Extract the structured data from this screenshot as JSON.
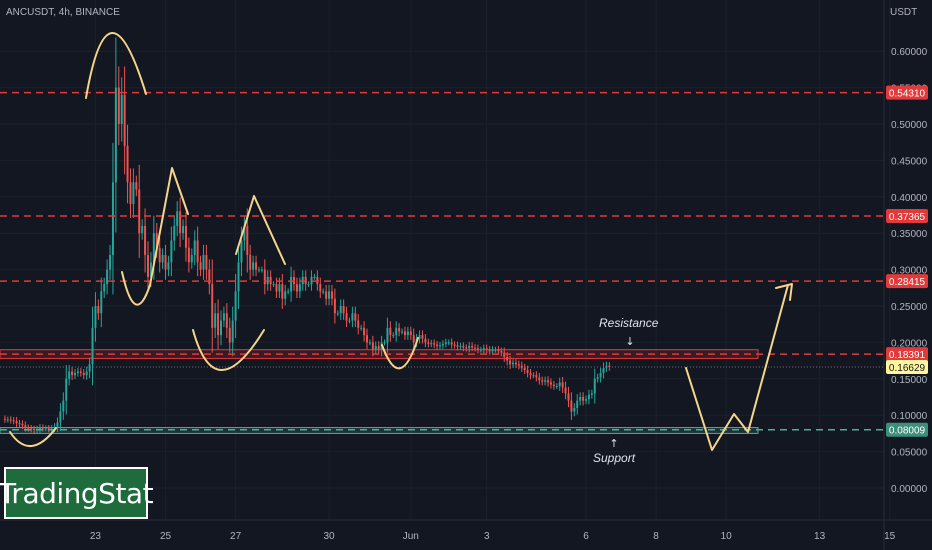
{
  "header": {
    "symbol": "ANCUSDT, 4h, BINANCE"
  },
  "logo": {
    "text": "TradingStat"
  },
  "annotations": {
    "resistance": "Resistance",
    "support": "Support"
  },
  "colors": {
    "background": "#131722",
    "bull": "#26a69a",
    "bear": "#ef5350",
    "sketch": "#f5d58a",
    "resistance_line": "#e23a3a",
    "support_line": "#4caf9a",
    "current_price": "#fff59d"
  },
  "chart_data": {
    "type": "candlestick",
    "quote_currency": "USDT",
    "y_ticks": [
      "0.60000",
      "0.55000",
      "0.50000",
      "0.45000",
      "0.40000",
      "0.35000",
      "0.30000",
      "0.25000",
      "0.20000",
      "0.15000",
      "0.10000",
      "0.05000",
      "0.00000"
    ],
    "y_tick_values": [
      0.6,
      0.55,
      0.5,
      0.45,
      0.4,
      0.35,
      0.3,
      0.25,
      0.2,
      0.15,
      0.1,
      0.05,
      0.0
    ],
    "ylim": [
      -0.05,
      0.66
    ],
    "x_ticks": [
      "23",
      "25",
      "27",
      "30",
      "Jun",
      "3",
      "6",
      "8",
      "10",
      "13",
      "15"
    ],
    "x_tick_index": [
      32,
      56,
      80,
      112,
      140,
      166,
      200,
      224,
      248,
      280,
      304
    ],
    "levels": [
      {
        "value": 0.5431,
        "label": "0.54310",
        "kind": "resistance"
      },
      {
        "value": 0.37365,
        "label": "0.37365",
        "kind": "resistance"
      },
      {
        "value": 0.28415,
        "label": "0.28415",
        "kind": "resistance"
      },
      {
        "value": 0.18391,
        "label": "0.18391",
        "kind": "resistance"
      },
      {
        "value": 0.08009,
        "label": "0.08009",
        "kind": "support"
      }
    ],
    "current_price": {
      "value": 0.16629,
      "label": "0.16629"
    },
    "resistance_zone": [
      0.178,
      0.19
    ],
    "support_zone": [
      0.075,
      0.083
    ],
    "closes": [
      0.095,
      0.094,
      0.094,
      0.093,
      0.092,
      0.089,
      0.088,
      0.086,
      0.083,
      0.082,
      0.081,
      0.08,
      0.081,
      0.083,
      0.082,
      0.082,
      0.081,
      0.082,
      0.084,
      0.09,
      0.105,
      0.12,
      0.15,
      0.16,
      0.155,
      0.158,
      0.16,
      0.158,
      0.155,
      0.16,
      0.17,
      0.22,
      0.25,
      0.24,
      0.27,
      0.28,
      0.3,
      0.32,
      0.42,
      0.55,
      0.5,
      0.54,
      0.47,
      0.42,
      0.39,
      0.42,
      0.41,
      0.35,
      0.36,
      0.32,
      0.29,
      0.31,
      0.35,
      0.33,
      0.31,
      0.32,
      0.3,
      0.31,
      0.34,
      0.36,
      0.38,
      0.35,
      0.36,
      0.33,
      0.31,
      0.32,
      0.34,
      0.31,
      0.3,
      0.32,
      0.3,
      0.28,
      0.22,
      0.24,
      0.21,
      0.23,
      0.24,
      0.22,
      0.2,
      0.23,
      0.27,
      0.31,
      0.34,
      0.36,
      0.32,
      0.3,
      0.31,
      0.3,
      0.3,
      0.3,
      0.28,
      0.29,
      0.28,
      0.28,
      0.27,
      0.28,
      0.26,
      0.27,
      0.27,
      0.29,
      0.28,
      0.27,
      0.28,
      0.29,
      0.28,
      0.28,
      0.29,
      0.29,
      0.28,
      0.27,
      0.27,
      0.26,
      0.27,
      0.26,
      0.24,
      0.24,
      0.25,
      0.24,
      0.23,
      0.23,
      0.24,
      0.23,
      0.22,
      0.22,
      0.21,
      0.2,
      0.2,
      0.19,
      0.195,
      0.19,
      0.2,
      0.2,
      0.22,
      0.21,
      0.21,
      0.22,
      0.215,
      0.215,
      0.21,
      0.215,
      0.21,
      0.2,
      0.205,
      0.21,
      0.205,
      0.2,
      0.198,
      0.199,
      0.197,
      0.195,
      0.196,
      0.198,
      0.2,
      0.2,
      0.197,
      0.196,
      0.194,
      0.195,
      0.193,
      0.192,
      0.195,
      0.193,
      0.192,
      0.19,
      0.19,
      0.192,
      0.19,
      0.188,
      0.19,
      0.19,
      0.188,
      0.186,
      0.18,
      0.175,
      0.17,
      0.172,
      0.17,
      0.168,
      0.165,
      0.162,
      0.158,
      0.155,
      0.155,
      0.152,
      0.148,
      0.146,
      0.148,
      0.145,
      0.142,
      0.14,
      0.14,
      0.145,
      0.138,
      0.13,
      0.12,
      0.105,
      0.11,
      0.12,
      0.125,
      0.12,
      0.122,
      0.128,
      0.13,
      0.15,
      0.152,
      0.158,
      0.165,
      0.168,
      0.166
    ]
  }
}
